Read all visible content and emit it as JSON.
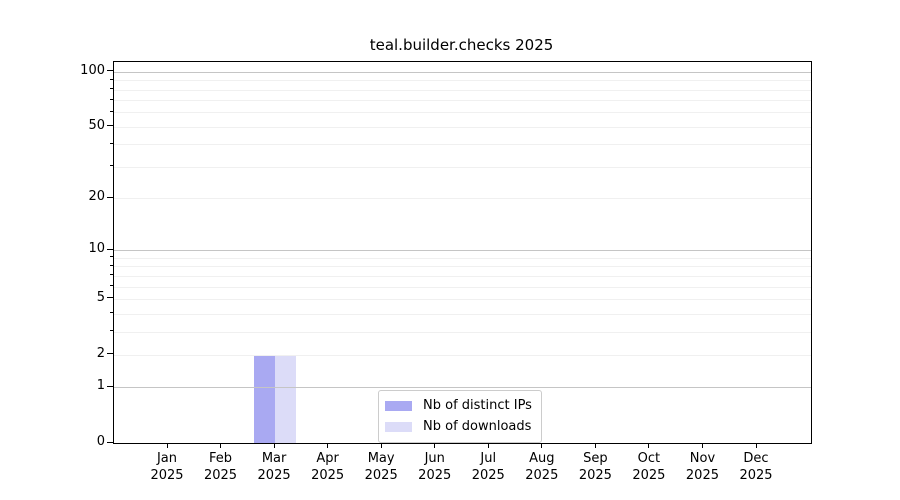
{
  "chart_data": {
    "type": "bar",
    "title": "teal.builder.checks 2025",
    "x_tick_labels": [
      {
        "month": "Jan",
        "year": "2025"
      },
      {
        "month": "Feb",
        "year": "2025"
      },
      {
        "month": "Mar",
        "year": "2025"
      },
      {
        "month": "Apr",
        "year": "2025"
      },
      {
        "month": "May",
        "year": "2025"
      },
      {
        "month": "Jun",
        "year": "2025"
      },
      {
        "month": "Jul",
        "year": "2025"
      },
      {
        "month": "Aug",
        "year": "2025"
      },
      {
        "month": "Sep",
        "year": "2025"
      },
      {
        "month": "Oct",
        "year": "2025"
      },
      {
        "month": "Nov",
        "year": "2025"
      },
      {
        "month": "Dec",
        "year": "2025"
      }
    ],
    "series": [
      {
        "name": "Nb of distinct IPs",
        "color": "#a9a9f2",
        "values": [
          0,
          0,
          2,
          0,
          0,
          0,
          0,
          0,
          0,
          0,
          0,
          0
        ]
      },
      {
        "name": "Nb of downloads",
        "color": "#dcdcf8",
        "values": [
          0,
          0,
          2,
          0,
          0,
          0,
          0,
          0,
          0,
          0,
          0,
          0
        ]
      }
    ],
    "y_axis": {
      "scale": "log1p",
      "ticks": [
        0,
        1,
        2,
        5,
        10,
        20,
        50,
        100
      ],
      "limit_top": 113.3,
      "major_gridlines": [
        1,
        10,
        100
      ],
      "minor_gridlines": [
        2,
        3,
        4,
        5,
        6,
        7,
        8,
        9,
        20,
        30,
        40,
        50,
        60,
        70,
        80,
        90
      ]
    },
    "legend": {
      "position": "bottom-center"
    },
    "grid": "on",
    "colors": {
      "major_grid": "#c5c5c5",
      "minor_grid": "#f0f0f0",
      "axis": "#000000",
      "background": "#ffffff"
    }
  }
}
